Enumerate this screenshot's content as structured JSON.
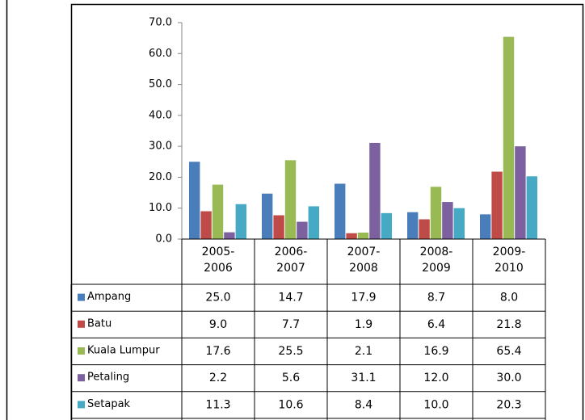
{
  "chart_data": {
    "type": "bar",
    "categories": [
      "2005-2006",
      "2006-2007",
      "2007-2008",
      "2008-2009",
      "2009-2010"
    ],
    "series": [
      {
        "name": "Ampang",
        "color": "#4a7ebb",
        "values": [
          25.0,
          14.7,
          17.9,
          8.7,
          8.0
        ],
        "value_labels": [
          "25.0",
          "14.7",
          "17.9",
          "8.7",
          "8.0"
        ]
      },
      {
        "name": "Batu",
        "color": "#be4b48",
        "values": [
          9.0,
          7.7,
          1.9,
          6.4,
          21.8
        ],
        "value_labels": [
          "9.0",
          "7.7",
          "1.9",
          "6.4",
          "21.8"
        ]
      },
      {
        "name": "Kuala Lumpur",
        "color": "#98b954",
        "values": [
          17.6,
          25.5,
          2.1,
          16.9,
          65.4
        ],
        "value_labels": [
          "17.6",
          "25.5",
          "2.1",
          "16.9",
          "65.4"
        ]
      },
      {
        "name": "Petaling",
        "color": "#7d60a0",
        "values": [
          2.2,
          5.6,
          31.1,
          12.0,
          30.0
        ],
        "value_labels": [
          "2.2",
          "5.6",
          "31.1",
          "12.0",
          "30.0"
        ]
      },
      {
        "name": "Setapak",
        "color": "#46aac5",
        "values": [
          11.3,
          10.6,
          8.4,
          10.0,
          20.3
        ],
        "value_labels": [
          "11.3",
          "10.6",
          "8.4",
          "10.0",
          "20.3"
        ]
      }
    ],
    "ylim": [
      0,
      70
    ],
    "yticks": [
      {
        "value": 0,
        "label": "0.0"
      },
      {
        "value": 10,
        "label": "10.0"
      },
      {
        "value": 20,
        "label": "20.0"
      },
      {
        "value": 30,
        "label": "30.0"
      },
      {
        "value": 40,
        "label": "40.0"
      },
      {
        "value": 50,
        "label": "50.0"
      },
      {
        "value": 60,
        "label": "60.0"
      },
      {
        "value": 70,
        "label": "70.0"
      }
    ],
    "data_table": true
  }
}
